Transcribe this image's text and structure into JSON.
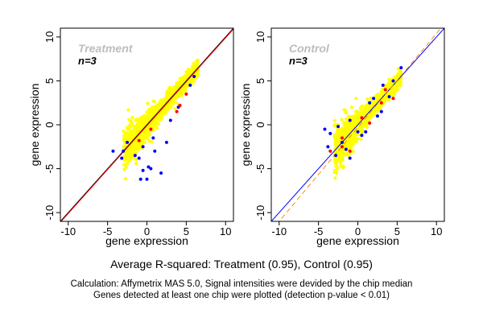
{
  "chart_data": [
    {
      "type": "scatter",
      "title": "Treatment",
      "annotation": "n=3",
      "xlabel": "gene expression",
      "ylabel": "gene expression",
      "xlim": [
        -11,
        11
      ],
      "ylim": [
        -11,
        11
      ],
      "xticks": [
        -10,
        -5,
        0,
        5,
        10
      ],
      "yticks": [
        -10,
        -5,
        0,
        5,
        10
      ],
      "grid": false,
      "series": [
        {
          "color": "#ffff00",
          "cloud": {
            "x_range": [
              -3,
              6.5
            ],
            "spread": 0.7
          }
        },
        {
          "color": "#0000ff",
          "points": [
            [
              -4.3,
              -3.0
            ],
            [
              -3.2,
              -3.8
            ],
            [
              -1.5,
              -3.5
            ],
            [
              -0.5,
              -2.5
            ],
            [
              0.2,
              -4.8
            ],
            [
              -0.5,
              -5.2
            ],
            [
              0.5,
              -5.0
            ],
            [
              1.8,
              -5.5
            ],
            [
              -0.8,
              -6.2
            ],
            [
              0.0,
              -6.2
            ],
            [
              -2.5,
              -2.0
            ],
            [
              -3.0,
              -3.0
            ],
            [
              2.5,
              -2.0
            ],
            [
              1.0,
              -3.0
            ],
            [
              4.0,
              2.0
            ],
            [
              5.5,
              4.5
            ],
            [
              3.0,
              0.5
            ],
            [
              -1.0,
              -3.8
            ],
            [
              0.8,
              -1.5
            ],
            [
              6.0,
              5.5
            ]
          ]
        },
        {
          "color": "#ff0000",
          "points": [
            [
              3.8,
              1.5
            ],
            [
              4.2,
              2.2
            ],
            [
              -1.0,
              -1.8
            ],
            [
              0.5,
              -0.5
            ],
            [
              5.0,
              3.5
            ]
          ]
        }
      ],
      "reference_lines": [
        {
          "kind": "identity",
          "color": "#000000",
          "style": "solid"
        },
        {
          "kind": "fit",
          "color": "#ff0000",
          "style": "solid"
        }
      ]
    },
    {
      "type": "scatter",
      "title": "Control",
      "annotation": "n=3",
      "xlabel": "gene expression",
      "ylabel": "gene expression",
      "xlim": [
        -11,
        11
      ],
      "ylim": [
        -11,
        11
      ],
      "xticks": [
        -10,
        -5,
        0,
        5,
        10
      ],
      "yticks": [
        -10,
        -5,
        0,
        5,
        10
      ],
      "grid": false,
      "series": [
        {
          "color": "#ffff00",
          "cloud": {
            "x_range": [
              -3,
              5.5
            ],
            "spread": 0.7
          }
        },
        {
          "color": "#0000ff",
          "points": [
            [
              -4.2,
              -0.5
            ],
            [
              -3.8,
              -2.5
            ],
            [
              -3.5,
              -1.0
            ],
            [
              -2.5,
              -0.2
            ],
            [
              -2.0,
              -2.0
            ],
            [
              -1.5,
              -2.8
            ],
            [
              -1.0,
              0.5
            ],
            [
              0.5,
              -1.2
            ],
            [
              1.0,
              -0.8
            ],
            [
              2.0,
              3.0
            ],
            [
              3.0,
              1.5
            ],
            [
              3.2,
              4.5
            ],
            [
              4.5,
              5.0
            ],
            [
              5.5,
              6.5
            ],
            [
              1.5,
              2.5
            ],
            [
              -2.8,
              -3.5
            ],
            [
              -1.0,
              -3.8
            ],
            [
              0.0,
              -0.8
            ],
            [
              2.5,
              1.0
            ],
            [
              4.0,
              3.2
            ]
          ]
        },
        {
          "color": "#ff0000",
          "points": [
            [
              -3.5,
              -3.0
            ],
            [
              -2.0,
              -2.5
            ],
            [
              0.5,
              0.8
            ],
            [
              3.0,
              2.5
            ],
            [
              4.5,
              3.0
            ],
            [
              -1.0,
              -3.0
            ],
            [
              -2.0,
              -1.5
            ],
            [
              1.5,
              0.2
            ],
            [
              3.5,
              4.0
            ]
          ]
        }
      ],
      "reference_lines": [
        {
          "kind": "identity",
          "color": "#0000ff",
          "style": "solid"
        },
        {
          "kind": "fit",
          "color": "#ff8c00",
          "style": "dashed"
        }
      ]
    }
  ],
  "captions": {
    "average": "Average R-squared: Treatment (0.95), Control (0.95)",
    "calc_line1": "Calculation: Affymetrix MAS 5.0, Signal intensities were devided by the chip median",
    "calc_line2": "Genes detected at least one chip were plotted (detection p-value < 0.01)"
  }
}
